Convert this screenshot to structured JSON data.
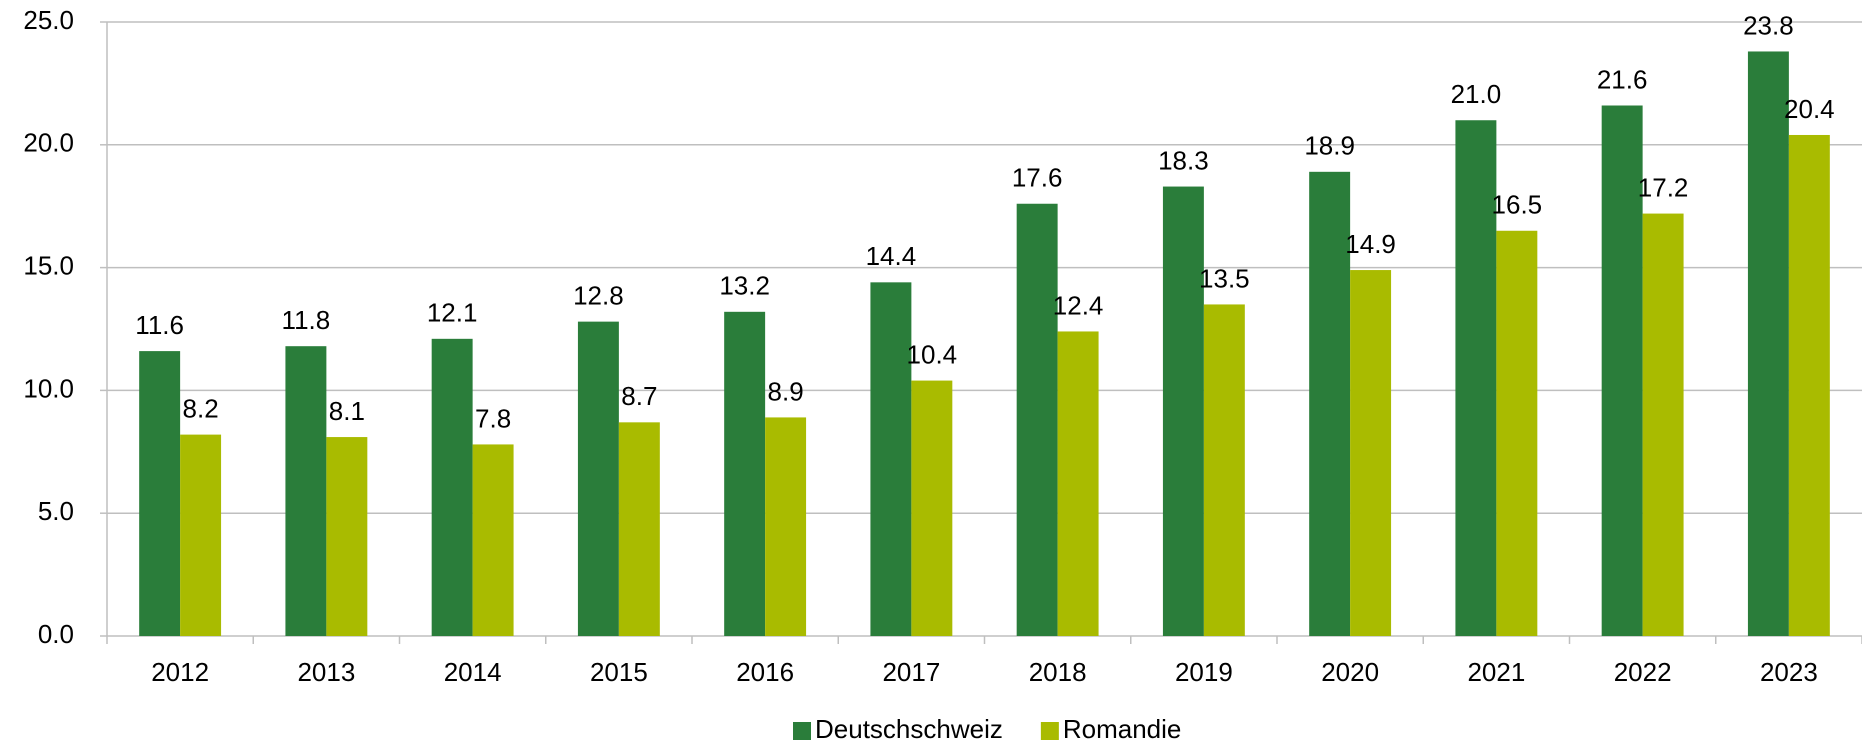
{
  "chart_data": {
    "type": "bar",
    "categories": [
      "2012",
      "2013",
      "2014",
      "2015",
      "2016",
      "2017",
      "2018",
      "2019",
      "2020",
      "2021",
      "2022",
      "2023"
    ],
    "series": [
      {
        "name": "Deutschschweiz",
        "color": "#2a7d3a",
        "values": [
          11.6,
          11.8,
          12.1,
          12.8,
          13.2,
          14.4,
          17.6,
          18.3,
          18.9,
          21.0,
          21.6,
          23.8
        ],
        "value_labels": [
          "11.6",
          "11.8",
          "12.1",
          "12.8",
          "13.2",
          "14.4",
          "17.6",
          "18.3",
          "18.9",
          "21.0",
          "21.6",
          "23.8"
        ]
      },
      {
        "name": "Romandie",
        "color": "#a9bb00",
        "values": [
          8.2,
          8.1,
          7.8,
          8.7,
          8.9,
          10.4,
          12.4,
          13.5,
          14.9,
          16.5,
          17.2,
          20.4
        ],
        "value_labels": [
          "8.2",
          "8.1",
          "7.8",
          "8.7",
          "8.9",
          "10.4",
          "12.4",
          "13.5",
          "14.9",
          "16.5",
          "17.2",
          "20.4"
        ]
      }
    ],
    "ylim": [
      0,
      25
    ],
    "yticks": [
      {
        "value": 0,
        "label": "0.0"
      },
      {
        "value": 5,
        "label": "5.0"
      },
      {
        "value": 10,
        "label": "10.0"
      },
      {
        "value": 15,
        "label": "15.0"
      },
      {
        "value": 20,
        "label": "20.0"
      },
      {
        "value": 25,
        "label": "25.0"
      }
    ],
    "grid": true,
    "legend": "bottom"
  }
}
